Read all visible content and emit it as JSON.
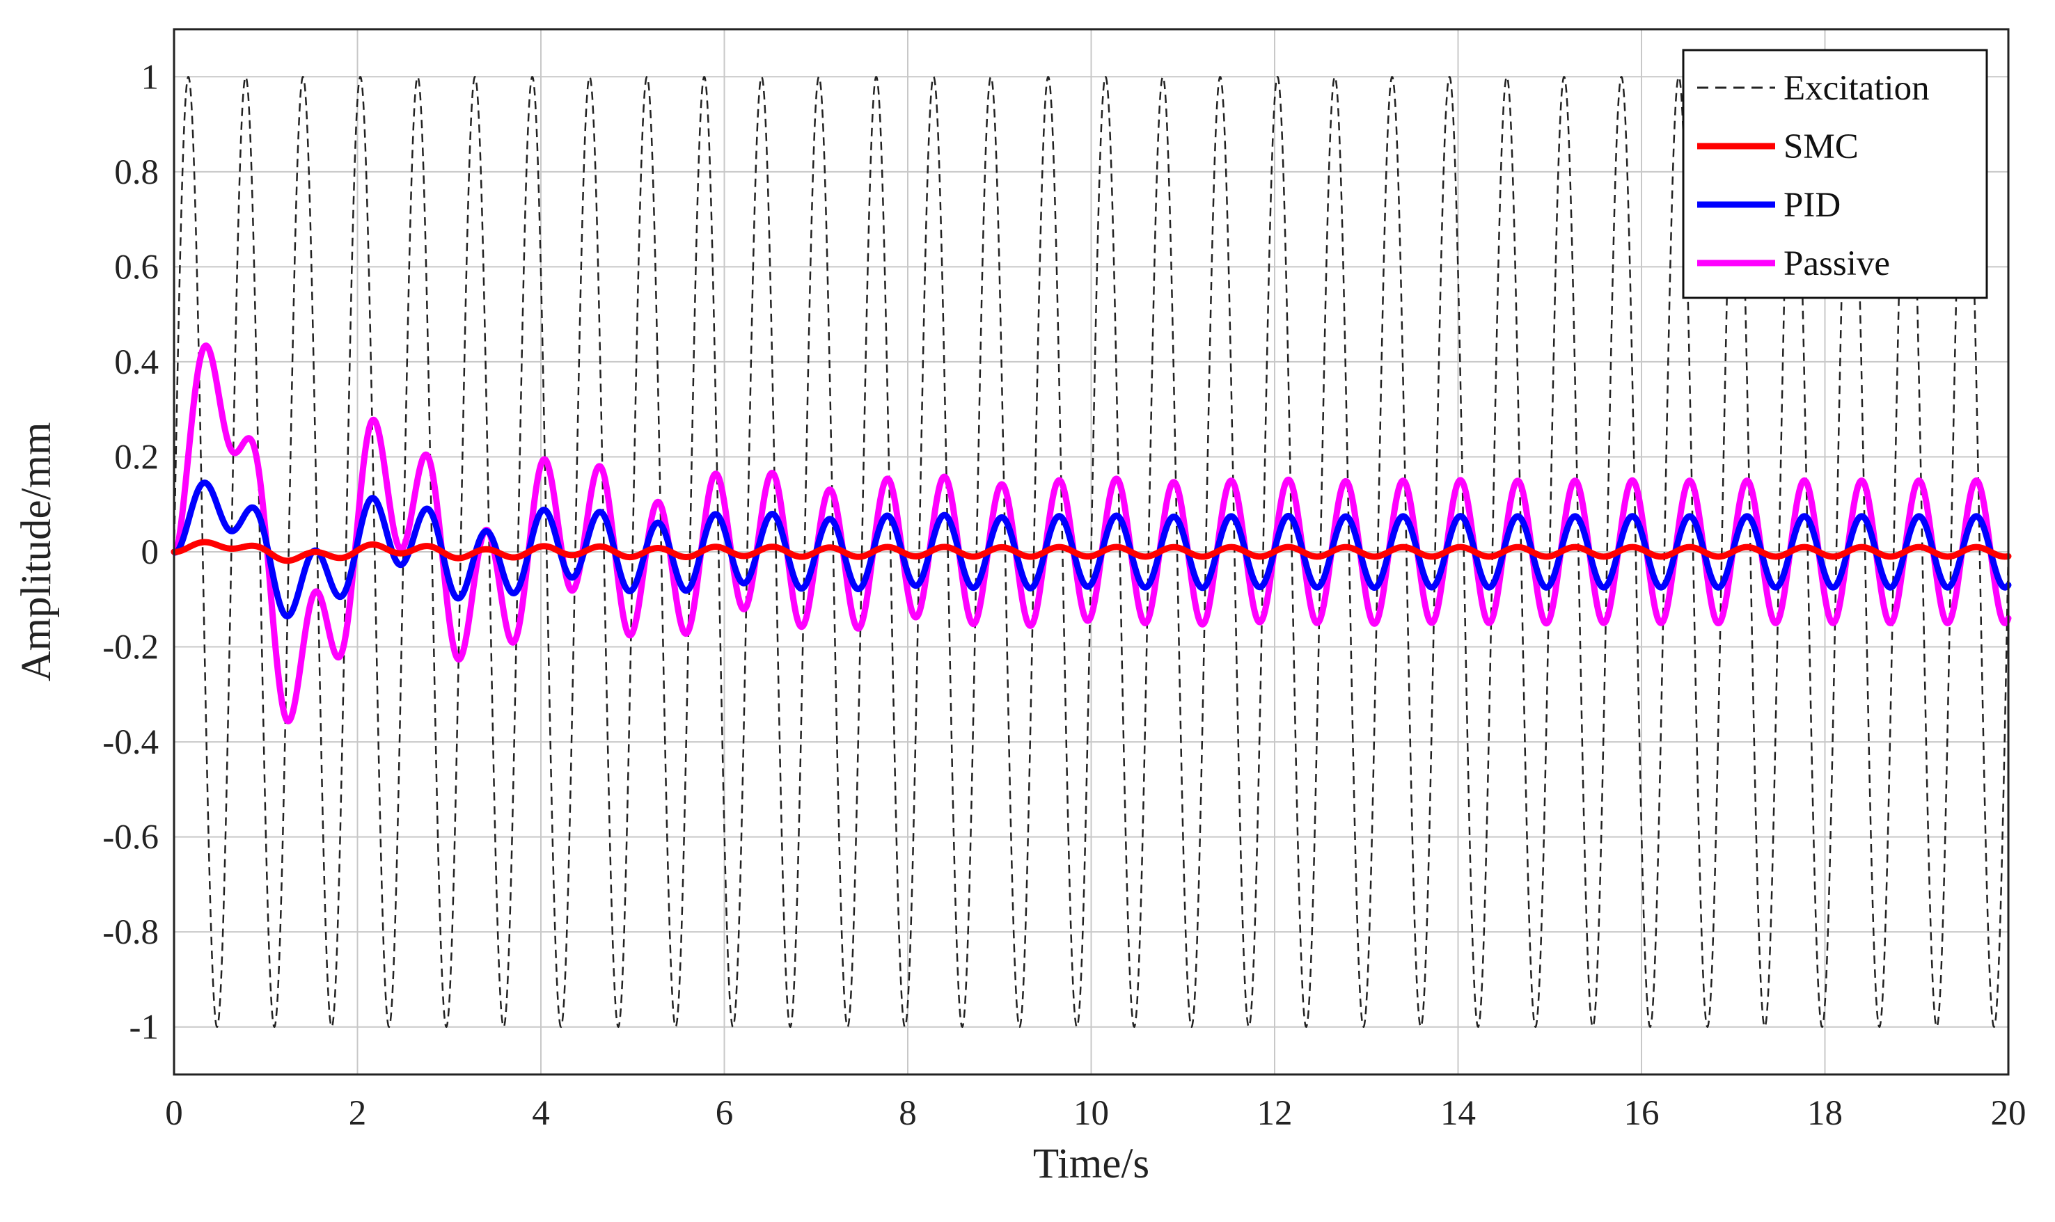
{
  "chart_data": {
    "type": "line",
    "title": "",
    "xlabel": "Time/s",
    "ylabel": "Amplitude/mm",
    "xlim": [
      0,
      20
    ],
    "ylim": [
      -1.1,
      1.1
    ],
    "x_ticks": [
      "0",
      "2",
      "4",
      "6",
      "8",
      "10",
      "12",
      "14",
      "16",
      "18",
      "20"
    ],
    "y_ticks": [
      "1",
      "0.8",
      "0.6",
      "0.4",
      "0.2",
      "0",
      "-0.2",
      "-0.4",
      "-0.6",
      "-0.8",
      "-1"
    ],
    "grid": true,
    "legend_position": "top-right",
    "series": [
      {
        "name": "Excitation",
        "color": "#222222",
        "style": "dashed",
        "model": {
          "kind": "sine",
          "amplitude": 1.0,
          "frequency_hz": 1.6,
          "offset": 0
        }
      },
      {
        "name": "SMC",
        "color": "#ff0000",
        "style": "solid",
        "model": {
          "kind": "damped_response",
          "steady_amplitude": 0.01,
          "transient_peaks": [
            0.02,
            -0.015,
            0.015,
            -0.02
          ]
        }
      },
      {
        "name": "PID",
        "color": "#0000ff",
        "style": "solid",
        "model": {
          "kind": "damped_response",
          "steady_amplitude": 0.075,
          "transient_peaks": [
            0.14,
            -0.03,
            0.12,
            -0.05,
            0.1,
            -0.06,
            0.09,
            -0.07
          ]
        }
      },
      {
        "name": "Passive",
        "color": "#ff00ff",
        "style": "solid",
        "model": {
          "kind": "damped_response",
          "steady_amplitude": 0.15,
          "transient_peaks": [
            0.46,
            -0.36,
            0.3,
            -0.24,
            0.2,
            -0.18
          ]
        }
      }
    ]
  }
}
